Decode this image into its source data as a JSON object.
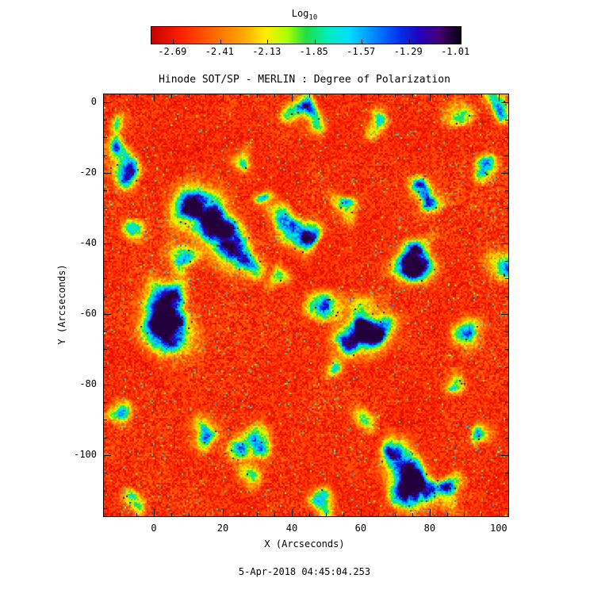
{
  "figure": {
    "title": "Hinode SOT/SP - MERLIN : Degree of Polarization",
    "timestamp": "5-Apr-2018 04:45:04.253",
    "colorbar": {
      "label_main": "Log",
      "label_sub": "10",
      "tick_labels": [
        "-2.69",
        "-2.41",
        "-2.13",
        "-1.85",
        "-1.57",
        "-1.29",
        "-1.01"
      ]
    },
    "axes": {
      "xlabel": "X (Arcseconds)",
      "ylabel": "Y (Arcseconds)",
      "x_tick_labels": [
        "0",
        "20",
        "40",
        "60",
        "80",
        "100"
      ],
      "y_tick_labels": [
        "0",
        "-20",
        "-40",
        "-60",
        "-80",
        "-100"
      ]
    }
  },
  "chart_data": {
    "type": "heatmap",
    "title": "Hinode SOT/SP - MERLIN : Degree of Polarization",
    "xlabel": "X (Arcseconds)",
    "ylabel": "Y (Arcseconds)",
    "timestamp": "5-Apr-2018 04:45:04.253",
    "colorbar_label": "Log10",
    "colorbar_range": [
      -2.69,
      -1.01
    ],
    "colorbar_ticks": [
      -2.69,
      -2.41,
      -2.13,
      -1.85,
      -1.57,
      -1.29,
      -1.01
    ],
    "x_range": [
      -14.5,
      102.8
    ],
    "y_range_top_to_bottom": [
      2.2,
      -117.3
    ],
    "x_ticks": [
      0,
      20,
      40,
      60,
      80,
      100
    ],
    "y_ticks": [
      0,
      -20,
      -40,
      -60,
      -80,
      -100
    ],
    "minor_tick_step": 5,
    "value_mapping": "fraction 0-1 maps linearly onto log10 polarization range [-2.69,-1.01]",
    "background": "quiet-sun field, log10 pol ~ -2.69 to -2.45 (red/orange granular noise with sparse yellow-green speckles)",
    "colormap_stops": [
      {
        "f": 0.0,
        "c": [
          200,
          0,
          0
        ]
      },
      {
        "f": 0.1,
        "c": [
          255,
          34,
          0
        ]
      },
      {
        "f": 0.2,
        "c": [
          255,
          102,
          0
        ]
      },
      {
        "f": 0.3,
        "c": [
          255,
          170,
          0
        ]
      },
      {
        "f": 0.37,
        "c": [
          255,
          238,
          0
        ]
      },
      {
        "f": 0.44,
        "c": [
          170,
          255,
          0
        ]
      },
      {
        "f": 0.5,
        "c": [
          34,
          221,
          68
        ]
      },
      {
        "f": 0.57,
        "c": [
          0,
          238,
          187
        ]
      },
      {
        "f": 0.64,
        "c": [
          0,
          221,
          255
        ]
      },
      {
        "f": 0.72,
        "c": [
          0,
          136,
          255
        ]
      },
      {
        "f": 0.8,
        "c": [
          0,
          51,
          238
        ]
      },
      {
        "f": 0.87,
        "c": [
          34,
          0,
          187
        ]
      },
      {
        "f": 0.93,
        "c": [
          68,
          0,
          119
        ]
      },
      {
        "f": 1.0,
        "c": [
          10,
          0,
          15
        ]
      }
    ],
    "features": [
      {
        "x": 13,
        "y": -30,
        "r": 4.0,
        "s": 1.05
      },
      {
        "x": 17,
        "y": -34,
        "r": 3.0,
        "s": 1.1
      },
      {
        "x": 20,
        "y": -40,
        "r": 3.5,
        "s": 0.95
      },
      {
        "x": 26,
        "y": -44,
        "r": 3.0,
        "s": 0.8
      },
      {
        "x": 5,
        "y": -54,
        "r": 3.0,
        "s": 0.9
      },
      {
        "x": 3,
        "y": -60,
        "r": 3.5,
        "s": 1.0
      },
      {
        "x": 5,
        "y": -66,
        "r": 4.0,
        "s": 1.1
      },
      {
        "x": 8,
        "y": -44,
        "r": 2.5,
        "s": 0.7
      },
      {
        "x": -7,
        "y": -20,
        "r": 2.5,
        "s": 0.85
      },
      {
        "x": -10,
        "y": -14,
        "r": 2.0,
        "s": 0.7
      },
      {
        "x": 43,
        "y": -2,
        "r": 2.5,
        "s": 0.9
      },
      {
        "x": 47,
        "y": -6,
        "r": 2.0,
        "s": 0.7
      },
      {
        "x": 80,
        "y": -26,
        "r": 2.5,
        "s": 1.0
      },
      {
        "x": 76,
        "y": -44,
        "r": 3.0,
        "s": 1.05
      },
      {
        "x": 73,
        "y": -48,
        "r": 2.5,
        "s": 0.9
      },
      {
        "x": 60,
        "y": -62,
        "r": 3.0,
        "s": 1.0
      },
      {
        "x": 64,
        "y": -66,
        "r": 3.5,
        "s": 1.05
      },
      {
        "x": 57,
        "y": -68,
        "r": 2.5,
        "s": 0.85
      },
      {
        "x": 49,
        "y": -58,
        "r": 2.5,
        "s": 0.8
      },
      {
        "x": 42,
        "y": -37,
        "r": 2.5,
        "s": 0.95
      },
      {
        "x": 46,
        "y": -39,
        "r": 2.0,
        "s": 0.7
      },
      {
        "x": 38,
        "y": -33,
        "r": 2.0,
        "s": 0.7
      },
      {
        "x": 73,
        "y": -106,
        "r": 3.0,
        "s": 1.05
      },
      {
        "x": 75,
        "y": -111,
        "r": 3.5,
        "s": 1.1
      },
      {
        "x": 69,
        "y": -100,
        "r": 2.5,
        "s": 0.8
      },
      {
        "x": 84,
        "y": -111,
        "r": 2.5,
        "s": 0.95
      },
      {
        "x": 30,
        "y": -97,
        "r": 2.5,
        "s": 0.8
      },
      {
        "x": 24,
        "y": -99,
        "r": 2.0,
        "s": 0.7
      },
      {
        "x": 14,
        "y": -94,
        "r": 2.5,
        "s": 0.75
      },
      {
        "x": 26,
        "y": -106,
        "r": 2.0,
        "s": 0.6
      },
      {
        "x": 48,
        "y": -113,
        "r": 2.0,
        "s": 0.65
      },
      {
        "x": 97,
        "y": -19,
        "r": 2.0,
        "s": 0.8
      },
      {
        "x": 91,
        "y": -66,
        "r": 2.5,
        "s": 0.85
      },
      {
        "x": 101,
        "y": -45,
        "r": 2.5,
        "s": 0.85
      },
      {
        "x": 87,
        "y": -80,
        "r": 2.0,
        "s": 0.6
      },
      {
        "x": 95,
        "y": -95,
        "r": 2.0,
        "s": 0.65
      },
      {
        "x": 60,
        "y": -90,
        "r": 2.0,
        "s": 0.55
      },
      {
        "x": 52,
        "y": -75,
        "r": 2.0,
        "s": 0.6
      },
      {
        "x": 55,
        "y": -30,
        "r": 2.0,
        "s": 0.65
      },
      {
        "x": 36,
        "y": -50,
        "r": 2.0,
        "s": 0.6
      },
      {
        "x": 64,
        "y": -5,
        "r": 2.0,
        "s": 0.6
      },
      {
        "x": 88,
        "y": -3,
        "r": 2.0,
        "s": 0.55
      },
      {
        "x": 100,
        "y": -1,
        "r": 2.0,
        "s": 0.6
      },
      {
        "x": 25,
        "y": -16,
        "r": 2.0,
        "s": 0.6
      },
      {
        "x": 33,
        "y": -27,
        "r": 1.8,
        "s": 0.55
      },
      {
        "x": -5,
        "y": -38,
        "r": 2.0,
        "s": 0.6
      },
      {
        "x": -10,
        "y": -88,
        "r": 2.0,
        "s": 0.55
      },
      {
        "x": -6,
        "y": -114,
        "r": 2.0,
        "s": 0.6
      },
      {
        "x": -10,
        "y": -7,
        "r": 1.8,
        "s": 0.55
      }
    ]
  }
}
